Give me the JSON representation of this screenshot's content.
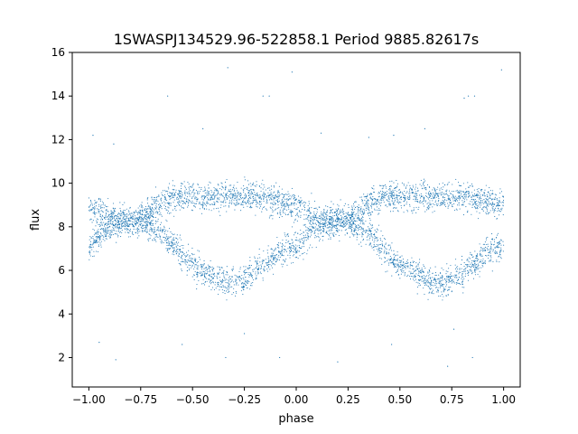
{
  "chart_data": {
    "type": "scatter",
    "title": "1SWASPJ134529.96-522858.1 Period 9885.82617s",
    "xlabel": "phase",
    "ylabel": "flux",
    "xlim": [
      -1.08,
      1.08
    ],
    "ylim": [
      0.65,
      16.0
    ],
    "xticks": [
      -1.0,
      -0.75,
      -0.5,
      -0.25,
      0.0,
      0.25,
      0.5,
      0.75,
      1.0
    ],
    "xtick_labels": [
      "−1.00",
      "−0.75",
      "−0.50",
      "−0.25",
      "0.00",
      "0.25",
      "0.50",
      "0.75",
      "1.00"
    ],
    "yticks": [
      2,
      4,
      6,
      8,
      10,
      12,
      14,
      16
    ],
    "ytick_labels": [
      "2",
      "4",
      "6",
      "8",
      "10",
      "12",
      "14",
      "16"
    ],
    "grid": false,
    "legend": "none",
    "marker_color": "#1f77b4",
    "phase_range": [
      -1.0,
      1.0
    ],
    "curve_profile": {
      "phase": [
        0.0,
        0.05,
        0.1,
        0.15,
        0.2,
        0.25,
        0.3,
        0.35,
        0.4,
        0.45,
        0.5,
        0.55,
        0.6,
        0.65,
        0.7,
        0.75,
        0.8,
        0.85,
        0.9,
        0.95,
        1.0
      ],
      "lower_branch_flux": [
        7.1,
        7.6,
        8.0,
        8.2,
        8.3,
        8.2,
        8.0,
        7.7,
        7.2,
        6.7,
        6.3,
        6.0,
        5.7,
        5.45,
        5.45,
        5.6,
        5.9,
        6.3,
        6.7,
        7.0,
        7.1
      ],
      "upper_branch_flux": [
        9.0,
        8.7,
        8.4,
        8.3,
        8.3,
        8.4,
        8.7,
        9.1,
        9.3,
        9.4,
        9.4,
        9.4,
        9.4,
        9.4,
        9.4,
        9.4,
        9.4,
        9.3,
        9.2,
        9.1,
        9.0
      ]
    },
    "outliers": [
      {
        "x": -0.98,
        "y": 12.2
      },
      {
        "x": -0.88,
        "y": 11.8
      },
      {
        "x": -0.62,
        "y": 14.0
      },
      {
        "x": -0.45,
        "y": 12.5
      },
      {
        "x": -0.33,
        "y": 15.3
      },
      {
        "x": -0.16,
        "y": 14.0
      },
      {
        "x": -0.13,
        "y": 14.0
      },
      {
        "x": -0.02,
        "y": 15.1
      },
      {
        "x": 0.12,
        "y": 12.3
      },
      {
        "x": 0.35,
        "y": 12.1
      },
      {
        "x": 0.47,
        "y": 12.2
      },
      {
        "x": 0.62,
        "y": 12.5
      },
      {
        "x": 0.81,
        "y": 13.9
      },
      {
        "x": 0.83,
        "y": 14.0
      },
      {
        "x": 0.86,
        "y": 14.0
      },
      {
        "x": 0.99,
        "y": 15.2
      },
      {
        "x": -0.95,
        "y": 2.7
      },
      {
        "x": -0.87,
        "y": 1.9
      },
      {
        "x": -0.55,
        "y": 2.6
      },
      {
        "x": -0.34,
        "y": 2.0
      },
      {
        "x": -0.08,
        "y": 2.0
      },
      {
        "x": 0.2,
        "y": 1.8
      },
      {
        "x": 0.46,
        "y": 2.6
      },
      {
        "x": 0.73,
        "y": 1.6
      },
      {
        "x": 0.85,
        "y": 2.0
      },
      {
        "x": -0.25,
        "y": 3.1
      },
      {
        "x": 0.76,
        "y": 3.3
      }
    ]
  }
}
